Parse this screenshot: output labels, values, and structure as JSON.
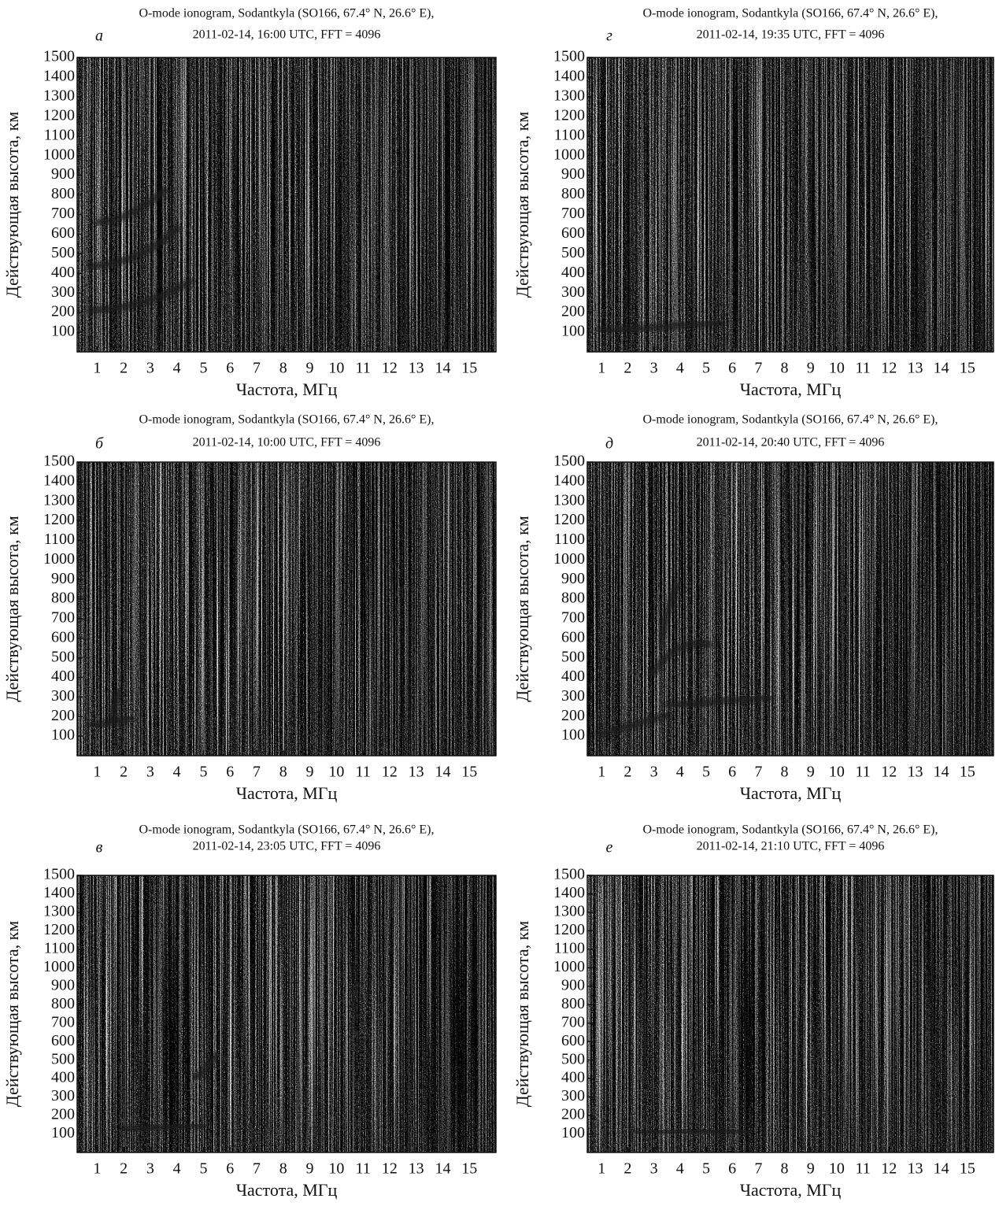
{
  "chart_data": [
    {
      "type": "image",
      "title": "O-mode ionogram, Sodantkyla (SO166, 67.4° N, 26.6° E),",
      "subtitle": "2011-02-14, 16:00 UTC, FFT = 4096",
      "panel_label": "а",
      "xlabel": "Частота, МГц",
      "ylabel": "Действующая высота, км",
      "xlim": [
        0.25,
        16
      ],
      "ylim": [
        0,
        1500
      ],
      "xticks": [
        1,
        2,
        3,
        4,
        5,
        6,
        7,
        8,
        9,
        10,
        11,
        12,
        13,
        14,
        15
      ],
      "yticks": [
        100,
        200,
        300,
        400,
        500,
        600,
        700,
        800,
        900,
        1000,
        1100,
        1200,
        1300,
        1400,
        1500
      ]
    },
    {
      "type": "image",
      "title": "O-mode ionogram, Sodantkyla (SO166, 67.4° N, 26.6° E),",
      "subtitle": "2011-02-14, 19:35 UTC, FFT = 4096",
      "panel_label": "г",
      "xlabel": "Частота, МГц",
      "ylabel": "Действующая высота, км",
      "xlim": [
        0.45,
        16
      ],
      "ylim": [
        0,
        1500
      ],
      "xticks": [
        1,
        2,
        3,
        4,
        5,
        6,
        7,
        8,
        9,
        10,
        11,
        12,
        13,
        14,
        15
      ],
      "yticks": [
        100,
        200,
        300,
        400,
        500,
        600,
        700,
        800,
        900,
        1000,
        1100,
        1200,
        1300,
        1400,
        1500
      ]
    },
    {
      "type": "image",
      "title": "O-mode ionogram, Sodantkyla (SO166, 67.4° N, 26.6° E),",
      "subtitle": "2011-02-14, 10:00 UTC, FFT = 4096",
      "panel_label": "б",
      "xlabel": "Частота, МГц",
      "ylabel": "Действующая высота, км",
      "xlim": [
        0.25,
        16
      ],
      "ylim": [
        0,
        1500
      ],
      "xticks": [
        1,
        2,
        3,
        4,
        5,
        6,
        7,
        8,
        9,
        10,
        11,
        12,
        13,
        14,
        15
      ],
      "yticks": [
        100,
        200,
        300,
        400,
        500,
        600,
        700,
        800,
        900,
        1000,
        1100,
        1200,
        1300,
        1400,
        1500
      ]
    },
    {
      "type": "image",
      "title": "O-mode ionogram, Sodantkyla (SO166, 67.4° N, 26.6° E),",
      "subtitle": "2011-02-14, 20:40 UTC, FFT = 4096",
      "panel_label": "д",
      "xlabel": "Частота, МГц",
      "ylabel": "Действующая высота, км",
      "xlim": [
        0.45,
        16
      ],
      "ylim": [
        0,
        1500
      ],
      "xticks": [
        1,
        2,
        3,
        4,
        5,
        6,
        7,
        8,
        9,
        10,
        11,
        12,
        13,
        14,
        15
      ],
      "yticks": [
        100,
        200,
        300,
        400,
        500,
        600,
        700,
        800,
        900,
        1000,
        1100,
        1200,
        1300,
        1400,
        1500
      ]
    },
    {
      "type": "image",
      "title": "O-mode ionogram, Sodantkyla (SO166, 67.4° N, 26.6° E),",
      "subtitle": "2011-02-14, 23:05 UTC, FFT = 4096",
      "panel_label": "в",
      "xlabel": "Частота, МГц",
      "ylabel": "Действующая высота, км",
      "xlim": [
        0.25,
        16
      ],
      "ylim": [
        0,
        1500
      ],
      "xticks": [
        1,
        2,
        3,
        4,
        5,
        6,
        7,
        8,
        9,
        10,
        11,
        12,
        13,
        14,
        15
      ],
      "yticks": [
        100,
        200,
        300,
        400,
        500,
        600,
        700,
        800,
        900,
        1000,
        1100,
        1200,
        1300,
        1400,
        1500
      ]
    },
    {
      "type": "image",
      "title": "O-mode ionogram, Sodantkyla (SO166, 67.4° N, 26.6° E),",
      "subtitle": "2011-02-14, 21:10 UTC, FFT = 4096",
      "panel_label": "е",
      "xlabel": "Частота, МГц",
      "ylabel": "Действующая высота, км",
      "xlim": [
        0.45,
        16
      ],
      "ylim": [
        0,
        1500
      ],
      "xticks": [
        1,
        2,
        3,
        4,
        5,
        6,
        7,
        8,
        9,
        10,
        11,
        12,
        13,
        14,
        15
      ],
      "yticks": [
        100,
        200,
        300,
        400,
        500,
        600,
        700,
        800,
        900,
        1000,
        1100,
        1200,
        1300,
        1400,
        1500
      ]
    }
  ]
}
